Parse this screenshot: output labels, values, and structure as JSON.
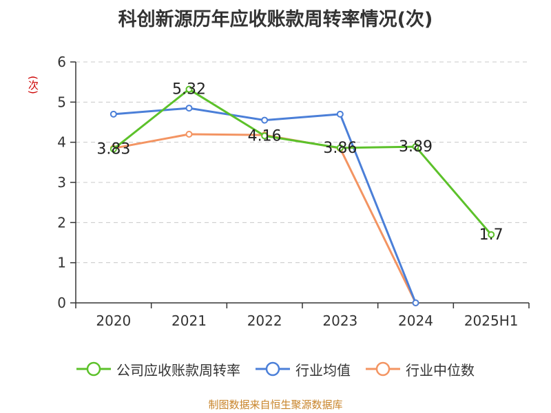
{
  "title": "科创新源历年应收账款周转率情况(次)",
  "source": "制图数据来自恒生聚源数据库",
  "chart_data": {
    "type": "line",
    "title": "科创新源历年应收账款周转率情况(次)",
    "ylabel": "(次)",
    "xlabel": "",
    "categories": [
      "2020",
      "2021",
      "2022",
      "2023",
      "2024",
      "2025H1"
    ],
    "ylim": [
      0,
      6
    ],
    "yticks": [
      0,
      1,
      2,
      3,
      4,
      5,
      6
    ],
    "grid": true,
    "legend_position": "bottom",
    "series": [
      {
        "name": "公司应收账款周转率",
        "color": "#5cc12a",
        "values": [
          3.83,
          5.32,
          4.16,
          3.86,
          3.89,
          1.7
        ],
        "labels": [
          "3.83",
          "5.32",
          "4.16",
          "3.86",
          "3.89",
          "1.7"
        ]
      },
      {
        "name": "行业均值",
        "color": "#4b7fd8",
        "values": [
          4.7,
          4.85,
          4.55,
          4.7,
          0,
          null
        ]
      },
      {
        "name": "行业中位数",
        "color": "#f39462",
        "values": [
          3.85,
          4.2,
          4.18,
          3.85,
          0,
          null
        ]
      }
    ]
  }
}
